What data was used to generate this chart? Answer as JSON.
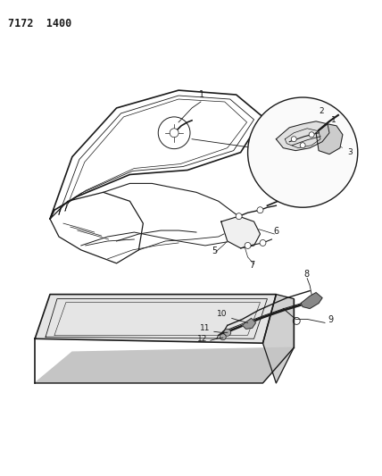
{
  "title": "7172  1400",
  "bg": "#ffffff",
  "lc": "#1a1a1a",
  "fig_w": 4.28,
  "fig_h": 5.33,
  "dpi": 100
}
